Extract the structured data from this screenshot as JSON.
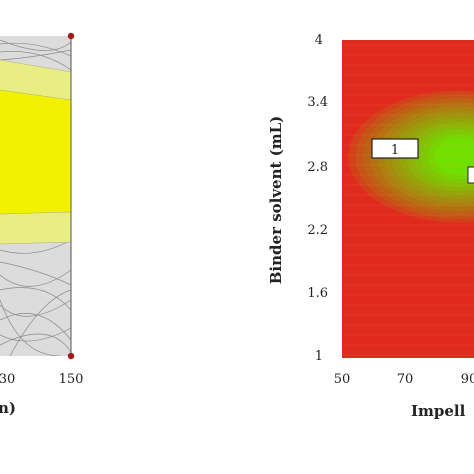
{
  "chart_data": [
    {
      "type": "area",
      "title": "",
      "x_ticks": [
        "30",
        "150"
      ],
      "xlabel_fragment": "n)",
      "regions": [
        {
          "name": "",
          "color": "#f2f200"
        },
        {
          "name": "",
          "color": "#e8ee84"
        },
        {
          "name": "",
          "color": "#d8d8d8"
        }
      ],
      "corner_markers": [
        {
          "x": "150",
          "y": "top"
        },
        {
          "x": "150",
          "y": "bottom"
        }
      ]
    },
    {
      "type": "heatmap",
      "title": "",
      "xlabel": "Impell",
      "ylabel": "Binder solvent (mL)",
      "x_ticks": [
        "50",
        "70",
        "90"
      ],
      "y_ticks": [
        "4",
        "3.4",
        "2.8",
        "2.2",
        "1.6",
        "1"
      ],
      "xlim": [
        50,
        90
      ],
      "ylim": [
        1,
        4
      ],
      "colors": {
        "low": "#e02a1e",
        "high": "#70e000"
      },
      "optimum_center": {
        "x": 87,
        "y": 2.9
      },
      "annotations": [
        {
          "label": "1",
          "x": 63,
          "y": 2.95
        }
      ]
    }
  ]
}
